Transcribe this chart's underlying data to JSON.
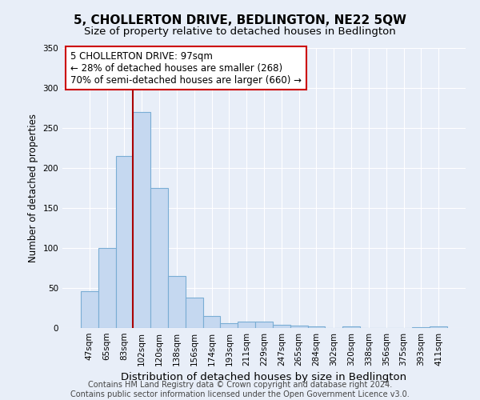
{
  "title": "5, CHOLLERTON DRIVE, BEDLINGTON, NE22 5QW",
  "subtitle": "Size of property relative to detached houses in Bedlington",
  "xlabel": "Distribution of detached houses by size in Bedlington",
  "ylabel": "Number of detached properties",
  "categories": [
    "47sqm",
    "65sqm",
    "83sqm",
    "102sqm",
    "120sqm",
    "138sqm",
    "156sqm",
    "174sqm",
    "193sqm",
    "211sqm",
    "229sqm",
    "247sqm",
    "265sqm",
    "284sqm",
    "302sqm",
    "320sqm",
    "338sqm",
    "356sqm",
    "375sqm",
    "393sqm",
    "411sqm"
  ],
  "values": [
    46,
    100,
    215,
    270,
    175,
    65,
    38,
    15,
    6,
    8,
    8,
    4,
    3,
    2,
    0,
    2,
    0,
    0,
    0,
    1,
    2
  ],
  "bar_color": "#c5d8f0",
  "bar_edge_color": "#7aadd4",
  "vline_color": "#aa0000",
  "annotation_text": "5 CHOLLERTON DRIVE: 97sqm\n← 28% of detached houses are smaller (268)\n70% of semi-detached houses are larger (660) →",
  "annotation_box_color": "white",
  "annotation_box_edge_color": "#cc0000",
  "ylim": [
    0,
    350
  ],
  "yticks": [
    0,
    50,
    100,
    150,
    200,
    250,
    300,
    350
  ],
  "footer": "Contains HM Land Registry data © Crown copyright and database right 2024.\nContains public sector information licensed under the Open Government Licence v3.0.",
  "title_fontsize": 11,
  "subtitle_fontsize": 9.5,
  "xlabel_fontsize": 9.5,
  "ylabel_fontsize": 8.5,
  "tick_fontsize": 7.5,
  "annotation_fontsize": 8.5,
  "footer_fontsize": 7,
  "bg_color": "#e8eef8",
  "plot_bg_color": "#e8eef8"
}
